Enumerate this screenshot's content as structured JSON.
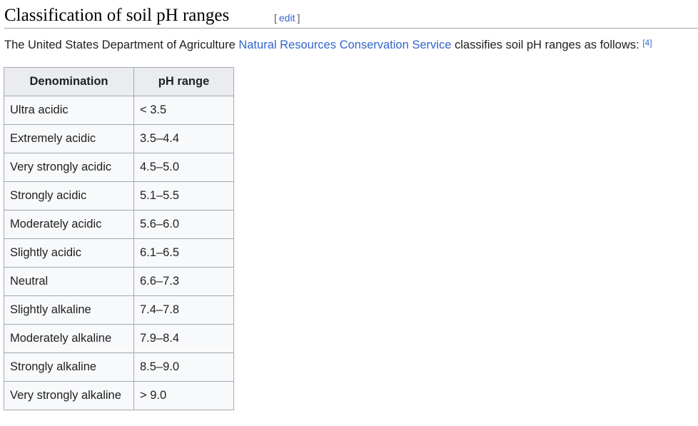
{
  "heading": {
    "title": "Classification of soil pH ranges",
    "edit_open": "[",
    "edit_label": "edit",
    "edit_close": "]"
  },
  "intro": {
    "text_before": "The United States Department of Agriculture ",
    "link_text": "Natural Resources Conservation Service",
    "text_after": " classifies soil pH ranges as follows: ",
    "citation": "[4]"
  },
  "table": {
    "headers": [
      "Denomination",
      "pH range"
    ],
    "rows": [
      {
        "name": "Ultra acidic",
        "range": "< 3.5"
      },
      {
        "name": "Extremely acidic",
        "range": "3.5–4.4"
      },
      {
        "name": "Very strongly acidic",
        "range": "4.5–5.0"
      },
      {
        "name": "Strongly acidic",
        "range": "5.1–5.5"
      },
      {
        "name": "Moderately acidic",
        "range": "5.6–6.0"
      },
      {
        "name": "Slightly acidic",
        "range": "6.1–6.5"
      },
      {
        "name": "Neutral",
        "range": "6.6–7.3"
      },
      {
        "name": "Slightly alkaline",
        "range": "7.4–7.8"
      },
      {
        "name": "Moderately alkaline",
        "range": "7.9–8.4"
      },
      {
        "name": "Strongly alkaline",
        "range": "8.5–9.0"
      },
      {
        "name": "Very strongly alkaline",
        "range": "> 9.0"
      }
    ]
  },
  "colors": {
    "link": "#3366cc",
    "text": "#202122",
    "header_bg": "#eaecf0",
    "cell_bg": "#f8f9fa",
    "border": "#a2a9b1"
  }
}
